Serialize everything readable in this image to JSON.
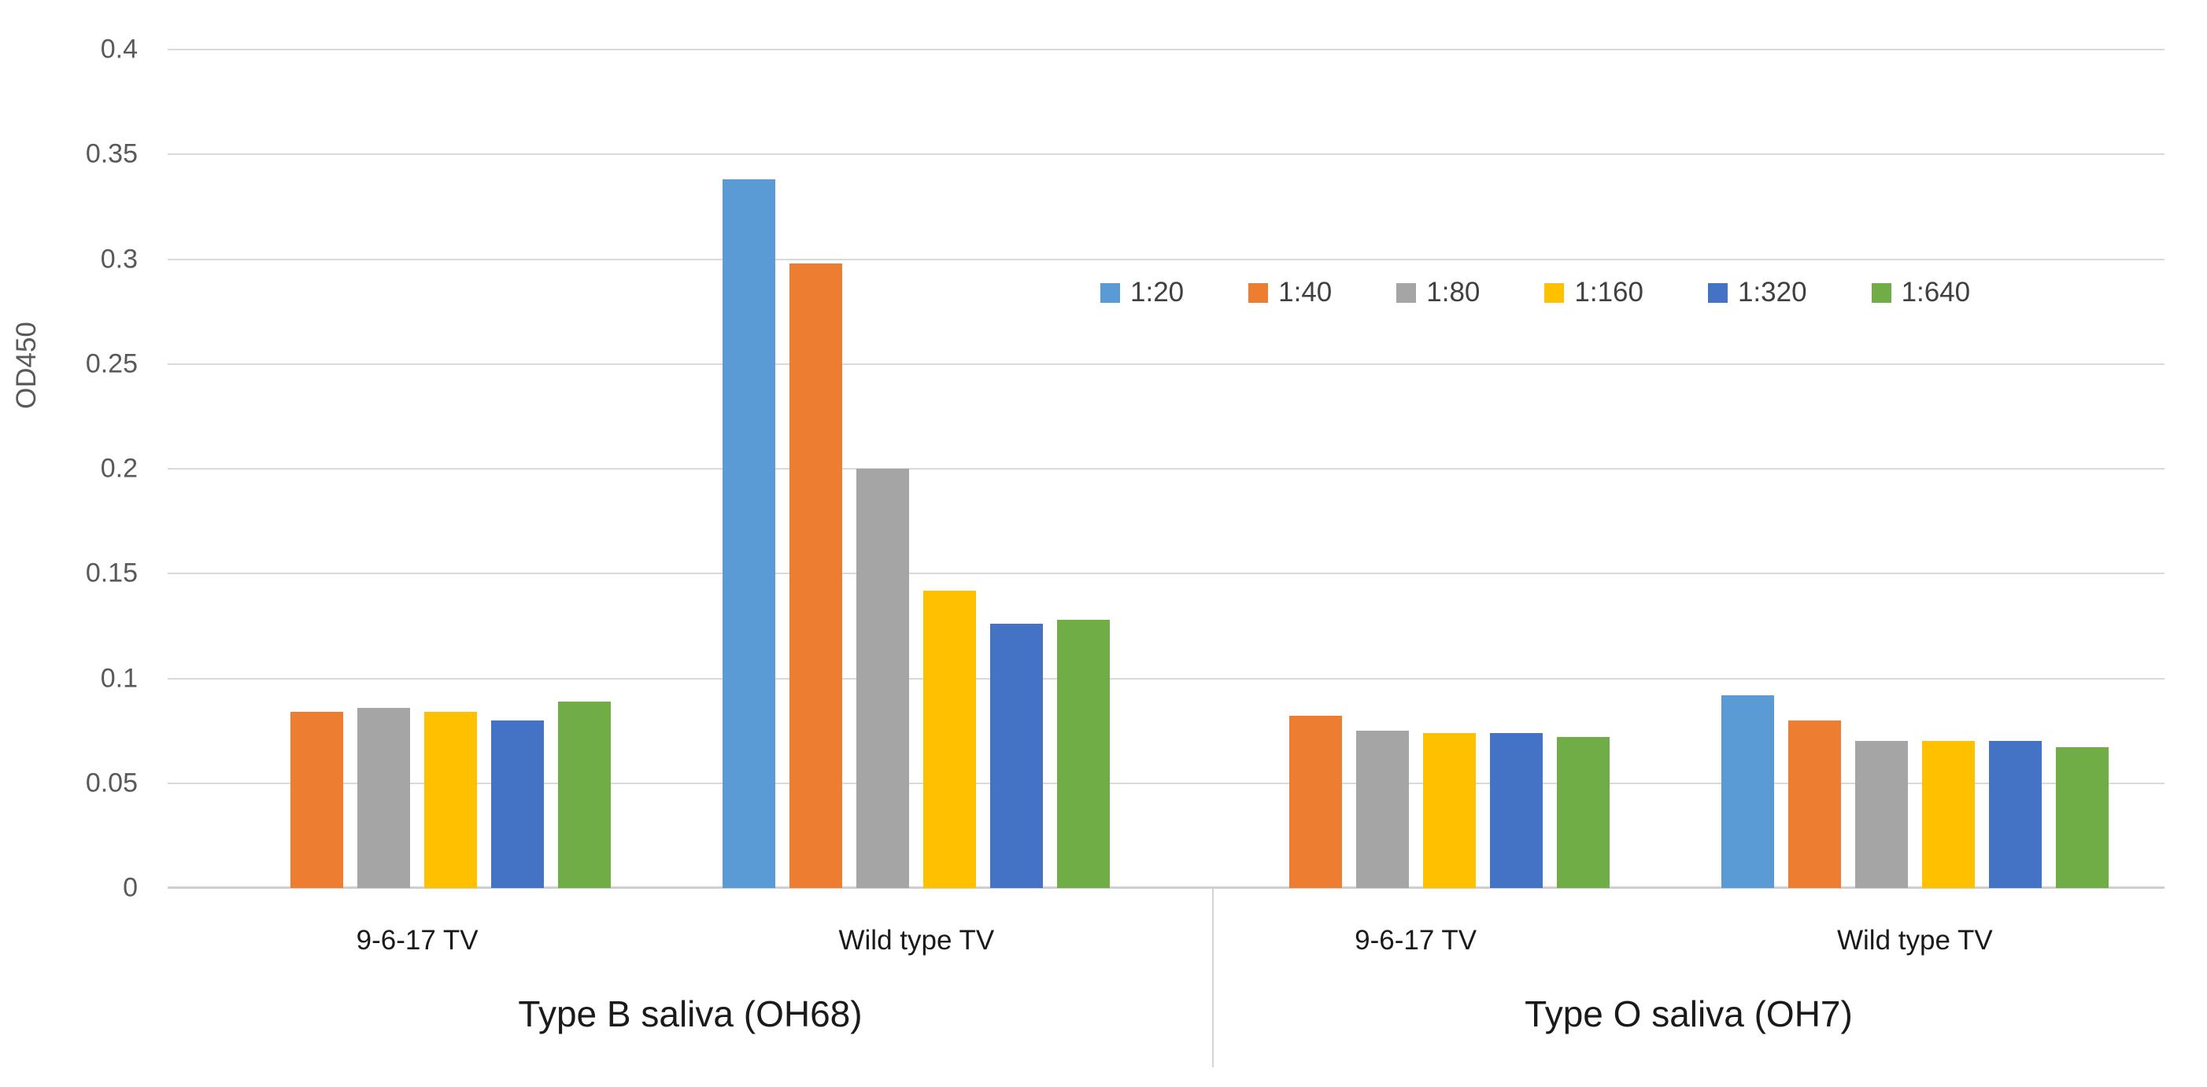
{
  "chart_data": {
    "type": "bar",
    "title": "",
    "ylabel": "OD450",
    "xlabel": "",
    "ylim": [
      0,
      0.4
    ],
    "ytick_step": 0.05,
    "ytick_labels": [
      "0",
      "0.05",
      "0.1",
      "0.15",
      "0.2",
      "0.25",
      "0.3",
      "0.35",
      "0.4"
    ],
    "grid": true,
    "legend_position": "top-right",
    "groups": [
      {
        "label": "Type B saliva (OH68)",
        "categories": [
          "9-6-17 TV",
          "Wild type TV"
        ]
      },
      {
        "label": "Type O saliva (OH7)",
        "categories": [
          "9-6-17 TV",
          "Wild type TV"
        ]
      }
    ],
    "categories": [
      "9-6-17 TV",
      "Wild type TV",
      "9-6-17 TV",
      "Wild type TV"
    ],
    "series": [
      {
        "name": "1:20",
        "color": "#5B9BD5",
        "values": [
          null,
          0.338,
          null,
          0.092
        ]
      },
      {
        "name": "1:40",
        "color": "#ED7D31",
        "values": [
          0.084,
          0.298,
          0.082,
          0.08
        ]
      },
      {
        "name": "1:80",
        "color": "#A5A5A5",
        "values": [
          0.086,
          0.2,
          0.075,
          0.07
        ]
      },
      {
        "name": "1:160",
        "color": "#FFC000",
        "values": [
          0.084,
          0.142,
          0.074,
          0.07
        ]
      },
      {
        "name": "1:320",
        "color": "#4472C4",
        "values": [
          0.08,
          0.126,
          0.074,
          0.07
        ]
      },
      {
        "name": "1:640",
        "color": "#70AD47",
        "values": [
          0.089,
          0.128,
          0.072,
          0.067
        ]
      }
    ]
  }
}
